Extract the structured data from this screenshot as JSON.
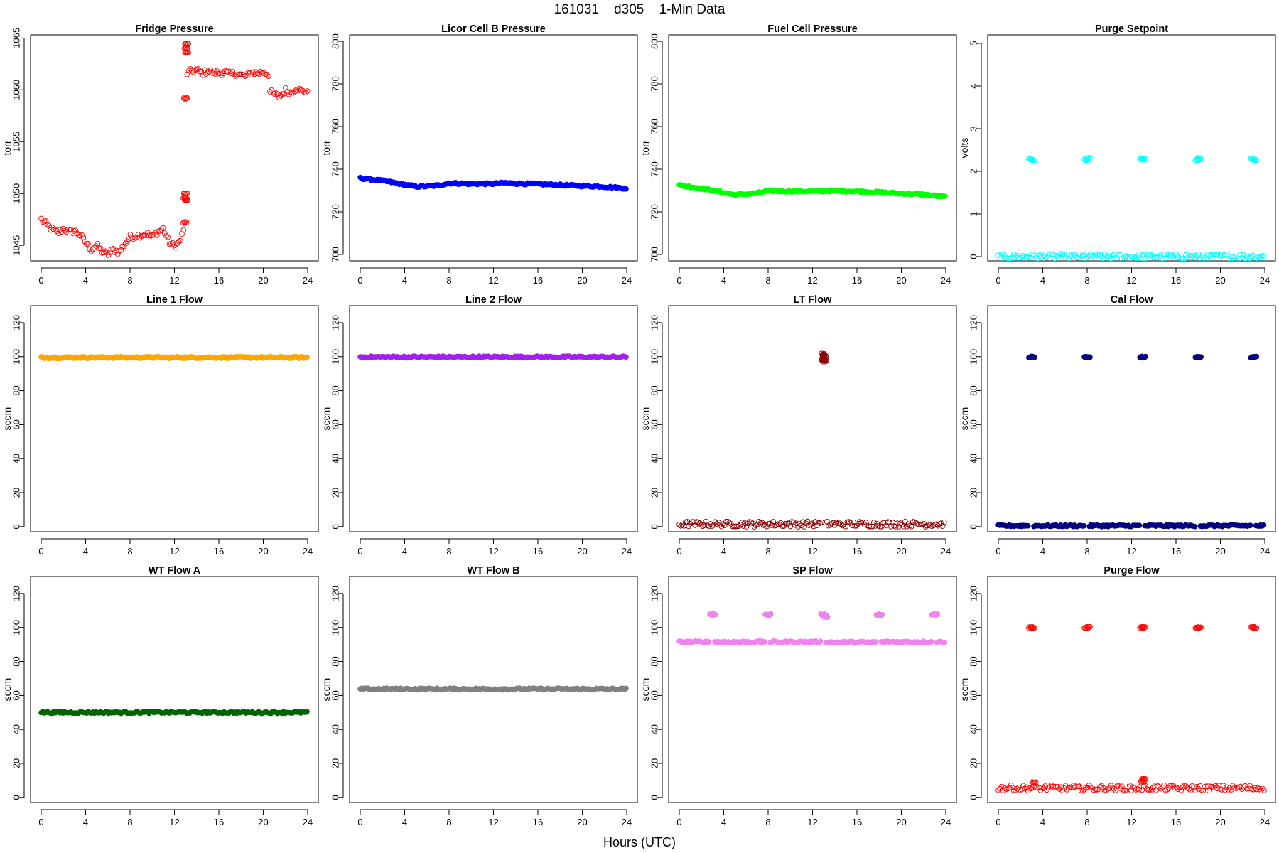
{
  "figure": {
    "title": "161031    d305    1-Min Data",
    "xlabel": "Hours (UTC)",
    "x_ticks": [
      0,
      4,
      8,
      12,
      16,
      20,
      24
    ]
  },
  "chart_data": [
    {
      "type": "scatter",
      "title": "Fridge Pressure",
      "ylabel": "torr",
      "xlim": [
        0,
        24
      ],
      "ylim": [
        1043.5,
        1065.3
      ],
      "y_ticks": [
        1045,
        1050,
        1055,
        1060,
        1065
      ],
      "color": "#ff0000",
      "marker": "open-circle",
      "series": [
        {
          "segments": [
            {
              "x": [
                0,
                0.5,
                1,
                1.5,
                2,
                2.5,
                3,
                3.5,
                4,
                4.5,
                5,
                5.5,
                6,
                6.5,
                7,
                7.5,
                8,
                8.5,
                9,
                9.5,
                10,
                10.5,
                11,
                11.5,
                12,
                12.5,
                12.85
              ],
              "y": [
                1047.5,
                1047.0,
                1046.5,
                1046.2,
                1046.6,
                1046.3,
                1046.4,
                1046.0,
                1045.3,
                1044.6,
                1045.0,
                1044.4,
                1044.1,
                1044.6,
                1044.3,
                1045.1,
                1045.8,
                1045.9,
                1046.0,
                1046.1,
                1045.8,
                1046.3,
                1046.6,
                1045.3,
                1044.9,
                1045.4,
                1046.5
              ]
            },
            {
              "x": [
                13.15,
                13.5,
                14,
                14.5,
                15,
                15.5,
                16,
                16.5,
                17,
                17.5,
                18,
                18.5,
                19,
                19.5,
                20,
                20.5
              ],
              "y": [
                1061.6,
                1061.8,
                1061.9,
                1061.6,
                1061.8,
                1061.7,
                1061.6,
                1061.7,
                1061.5,
                1061.6,
                1061.4,
                1061.3,
                1061.7,
                1061.6,
                1061.7,
                1061.5
              ]
            },
            {
              "x": [
                20.6,
                21,
                21.5,
                22,
                22.5,
                23,
                23.5,
                24
              ],
              "y": [
                1059.8,
                1059.6,
                1059.3,
                1060.0,
                1059.7,
                1060.2,
                1059.8,
                1059.9
              ]
            }
          ],
          "extra": {
            "x": [
              12.95,
              12.95,
              13.0,
              13.05,
              13.1,
              13.05,
              13.1,
              13.0
            ],
            "y": [
              1047.2,
              1049.6,
              1050.0,
              1049.4,
              1064.4,
              1064.0,
              1063.6,
              1059.2
            ]
          }
        }
      ]
    },
    {
      "type": "scatter",
      "title": "Licor Cell B Pressure",
      "ylabel": "torr",
      "xlim": [
        0,
        24
      ],
      "ylim": [
        697,
        803
      ],
      "y_ticks": [
        700,
        720,
        740,
        760,
        780,
        800
      ],
      "color": "#0000ff",
      "marker": "filled",
      "series": [
        {
          "segments": [
            {
              "x": [
                0,
                2,
                4,
                5,
                6,
                7,
                8,
                10,
                12,
                13,
                14,
                16,
                18,
                20,
                22,
                24
              ],
              "y": [
                735.8,
                734.6,
                732.8,
                731.9,
                732.0,
                732.4,
                733.5,
                733.1,
                733.2,
                733.6,
                733.3,
                733.0,
                732.6,
                732.2,
                731.8,
                731.0
              ]
            }
          ]
        }
      ]
    },
    {
      "type": "scatter",
      "title": "Fuel Cell Pressure",
      "ylabel": "torr",
      "xlim": [
        0,
        24
      ],
      "ylim": [
        697,
        803
      ],
      "y_ticks": [
        700,
        720,
        740,
        760,
        780,
        800
      ],
      "color": "#00ff00",
      "marker": "filled",
      "series": [
        {
          "segments": [
            {
              "x": [
                0,
                2,
                4,
                5,
                6,
                7,
                8,
                10,
                12,
                14,
                16,
                18,
                20,
                22,
                24
              ],
              "y": [
                732.5,
                731.0,
                729.0,
                728.0,
                728.3,
                728.8,
                729.8,
                729.7,
                729.6,
                729.9,
                729.6,
                729.2,
                728.6,
                728.1,
                727.0
              ]
            }
          ]
        }
      ]
    },
    {
      "type": "scatter",
      "title": "Purge Setpoint",
      "ylabel": "volts",
      "xlim": [
        0,
        24
      ],
      "ylim": [
        -0.1,
        5.2
      ],
      "y_ticks": [
        0,
        1,
        2,
        3,
        4,
        5
      ],
      "color": "#00ffff",
      "marker": "open-circle",
      "series": [
        {
          "segments": [
            {
              "x": [
                0,
                24
              ],
              "y": [
                0,
                0
              ]
            }
          ],
          "extra": {
            "x": [
              2.9,
              3.1,
              7.9,
              8.1,
              12.9,
              13.1,
              17.9,
              18.1,
              22.9,
              23.1
            ],
            "y": [
              2.28,
              2.26,
              2.27,
              2.3,
              2.29,
              2.28,
              2.27,
              2.3,
              2.29,
              2.27
            ]
          }
        }
      ]
    },
    {
      "type": "scatter",
      "title": "Line 1 Flow",
      "ylabel": "sccm",
      "xlim": [
        0,
        24
      ],
      "ylim": [
        -3,
        130
      ],
      "y_ticks": [
        0,
        20,
        40,
        60,
        80,
        100,
        120
      ],
      "color": "#ffa500",
      "marker": "filled",
      "series": [
        {
          "segments": [
            {
              "x": [
                0,
                24
              ],
              "y": [
                99.5,
                99.5
              ]
            }
          ]
        }
      ]
    },
    {
      "type": "scatter",
      "title": "Line 2 Flow",
      "ylabel": "sccm",
      "xlim": [
        0,
        24
      ],
      "ylim": [
        -3,
        130
      ],
      "y_ticks": [
        0,
        20,
        40,
        60,
        80,
        100,
        120
      ],
      "color": "#a020f0",
      "marker": "filled",
      "series": [
        {
          "segments": [
            {
              "x": [
                0,
                24
              ],
              "y": [
                99.8,
                99.8
              ]
            }
          ]
        }
      ]
    },
    {
      "type": "scatter",
      "title": "LT Flow",
      "ylabel": "sccm",
      "xlim": [
        0,
        24
      ],
      "ylim": [
        -3,
        130
      ],
      "y_ticks": [
        0,
        20,
        40,
        60,
        80,
        100,
        120
      ],
      "color": "#8b0000",
      "marker": "open-circle",
      "series": [
        {
          "segments": [
            {
              "x": [
                0,
                12.9
              ],
              "y": [
                1.5,
                1.5
              ]
            },
            {
              "x": [
                13.3,
                24
              ],
              "y": [
                1.5,
                1.5
              ]
            }
          ],
          "extra": {
            "x": [
              12.95,
              13.05,
              13.0,
              13.1,
              13.0
            ],
            "y": [
              101.5,
              100.5,
              99.0,
              98.0,
              97.5
            ]
          }
        }
      ]
    },
    {
      "type": "scatter",
      "title": "Cal Flow",
      "ylabel": "sccm",
      "xlim": [
        0,
        24
      ],
      "ylim": [
        -3,
        130
      ],
      "y_ticks": [
        0,
        20,
        40,
        60,
        80,
        100,
        120
      ],
      "color": "#000080",
      "marker": "filled",
      "series": [
        {
          "segments": [
            {
              "x": [
                0,
                2.8
              ],
              "y": [
                0.5,
                0.5
              ]
            },
            {
              "x": [
                3.2,
                7.8
              ],
              "y": [
                0.5,
                0.5
              ]
            },
            {
              "x": [
                8.2,
                12.8
              ],
              "y": [
                0.5,
                0.5
              ]
            },
            {
              "x": [
                13.2,
                17.8
              ],
              "y": [
                0.5,
                0.5
              ]
            },
            {
              "x": [
                18.2,
                22.8
              ],
              "y": [
                0.5,
                0.5
              ]
            },
            {
              "x": [
                23.2,
                24
              ],
              "y": [
                0.5,
                0.5
              ]
            }
          ],
          "extra": {
            "x": [
              2.9,
              3.1,
              7.9,
              8.1,
              12.9,
              13.1,
              17.9,
              18.1,
              22.9,
              23.1
            ],
            "y": [
              99.7,
              99.7,
              99.7,
              99.7,
              99.7,
              99.7,
              99.7,
              99.7,
              99.7,
              99.7
            ]
          }
        }
      ]
    },
    {
      "type": "scatter",
      "title": "WT Flow A",
      "ylabel": "sccm",
      "xlim": [
        0,
        24
      ],
      "ylim": [
        -3,
        130
      ],
      "y_ticks": [
        0,
        20,
        40,
        60,
        80,
        100,
        120
      ],
      "color": "#006400",
      "marker": "filled",
      "series": [
        {
          "segments": [
            {
              "x": [
                0,
                24
              ],
              "y": [
                50,
                50
              ]
            }
          ]
        }
      ]
    },
    {
      "type": "scatter",
      "title": "WT Flow B",
      "ylabel": "sccm",
      "xlim": [
        0,
        24
      ],
      "ylim": [
        -3,
        130
      ],
      "y_ticks": [
        0,
        20,
        40,
        60,
        80,
        100,
        120
      ],
      "color": "#808080",
      "marker": "filled",
      "series": [
        {
          "segments": [
            {
              "x": [
                0,
                24
              ],
              "y": [
                63.8,
                63.8
              ]
            }
          ]
        }
      ]
    },
    {
      "type": "scatter",
      "title": "SP Flow",
      "ylabel": "sccm",
      "xlim": [
        0,
        24
      ],
      "ylim": [
        -3,
        130
      ],
      "y_ticks": [
        0,
        20,
        40,
        60,
        80,
        100,
        120
      ],
      "color": "#ee82ee",
      "marker": "filled",
      "series": [
        {
          "segments": [
            {
              "x": [
                0,
                2.8
              ],
              "y": [
                91.5,
                91.5
              ]
            },
            {
              "x": [
                3.2,
                7.8
              ],
              "y": [
                91.5,
                91.5
              ]
            },
            {
              "x": [
                8.2,
                12.8
              ],
              "y": [
                91.5,
                91.5
              ]
            },
            {
              "x": [
                13.2,
                17.8
              ],
              "y": [
                91.3,
                91.3
              ]
            },
            {
              "x": [
                18.2,
                22.8
              ],
              "y": [
                91.5,
                91.5
              ]
            },
            {
              "x": [
                23.2,
                24
              ],
              "y": [
                91.5,
                91.5
              ]
            }
          ],
          "extra": {
            "x": [
              2.9,
              3.1,
              7.9,
              8.1,
              12.9,
              13.1,
              13.2,
              17.9,
              18.1,
              22.9,
              23.1
            ],
            "y": [
              107.6,
              107.6,
              107.6,
              107.6,
              107.6,
              107.0,
              106.5,
              107.6,
              107.6,
              107.6,
              107.6
            ]
          }
        }
      ]
    },
    {
      "type": "scatter",
      "title": "Purge Flow",
      "ylabel": "sccm",
      "xlim": [
        0,
        24
      ],
      "ylim": [
        -3,
        130
      ],
      "y_ticks": [
        0,
        20,
        40,
        60,
        80,
        100,
        120
      ],
      "color": "#ff0000",
      "marker": "open-circle",
      "series": [
        {
          "segments": [
            {
              "x": [
                0,
                24
              ],
              "y": [
                5.5,
                5.5
              ]
            }
          ],
          "extra": {
            "x": [
              2.9,
              3.1,
              7.9,
              8.1,
              12.9,
              13.1,
              17.9,
              18.1,
              22.9,
              23.1,
              13.0,
              13.1,
              3.2
            ],
            "y": [
              100.0,
              100.0,
              100.0,
              100.0,
              100.0,
              100.0,
              100.0,
              100.0,
              100.0,
              100.0,
              9.5,
              11.0,
              9.0
            ]
          }
        }
      ]
    }
  ]
}
